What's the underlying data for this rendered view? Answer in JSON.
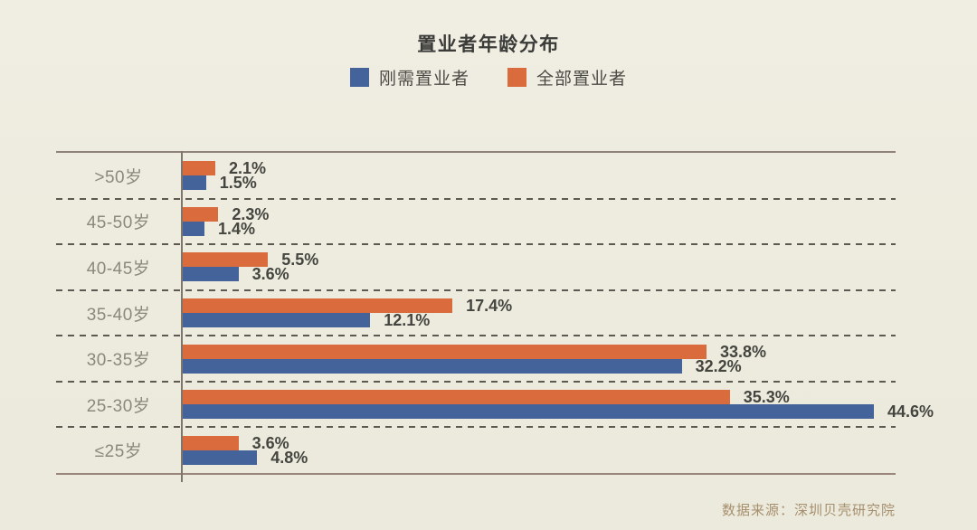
{
  "chart_data": {
    "type": "bar",
    "orientation": "horizontal",
    "title": "置业者年龄分布",
    "categories": [
      ">50岁",
      "45-50岁",
      "40-45岁",
      "35-40岁",
      "30-35岁",
      "25-30岁",
      "≤25岁"
    ],
    "series": [
      {
        "name": "刚需置业者",
        "color": "#44639B",
        "values": [
          1.5,
          1.4,
          3.6,
          12.1,
          32.2,
          44.6,
          4.8
        ],
        "labels": [
          "1.5%",
          "1.4%",
          "3.6%",
          "12.1%",
          "32.2%",
          "44.6%",
          "4.8%"
        ]
      },
      {
        "name": "全部置业者",
        "color": "#D96B3C",
        "values": [
          2.1,
          2.3,
          5.5,
          17.4,
          33.8,
          35.3,
          3.6
        ],
        "labels": [
          "2.1%",
          "2.3%",
          "5.5%",
          "17.4%",
          "33.8%",
          "35.3%",
          "3.6%"
        ]
      }
    ],
    "bar_order_top_to_bottom": [
      "全部置业者",
      "刚需置业者"
    ],
    "value_unit": "%",
    "xlim": [
      0,
      46
    ],
    "legend_position": "top",
    "grid": "dashed horizontal row separators",
    "ylabel": "",
    "xlabel": ""
  },
  "footer": {
    "source_text": "数据来源：深圳贝壳研究院"
  }
}
